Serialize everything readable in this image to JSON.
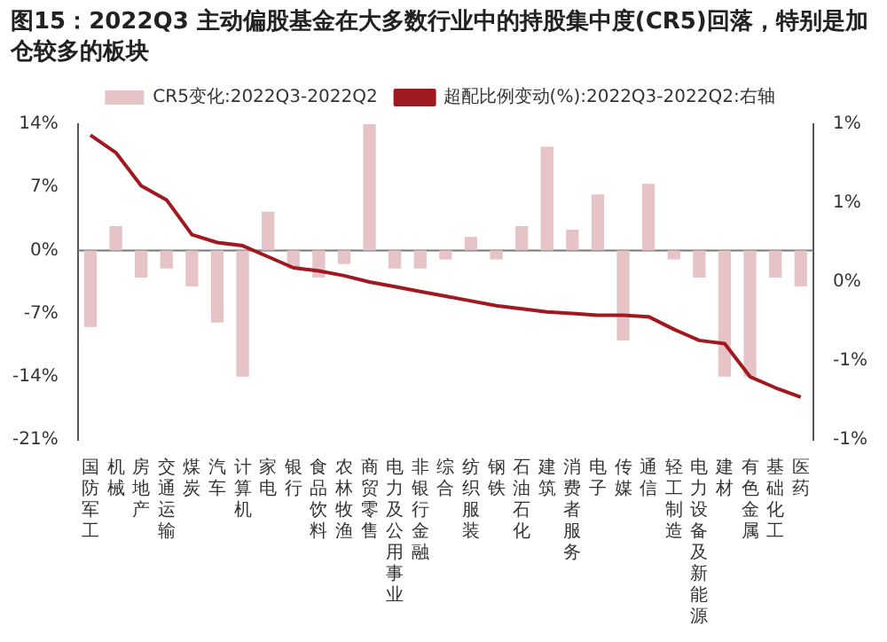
{
  "chart_data": {
    "type": "bar",
    "title": "图15：2022Q3 主动偏股基金在大多数行业中的持股集中度(CR5)回落，特别是加仓较多的板块",
    "categories": [
      "国防军工",
      "机械",
      "房地产",
      "交通运输",
      "煤炭",
      "汽车",
      "计算机",
      "家电",
      "银行",
      "食品饮料",
      "农林牧渔",
      "商贸零售",
      "电力及公用事业",
      "非银行金融",
      "综合",
      "纺织服装",
      "钢铁",
      "石油石化",
      "建筑",
      "消费者服务",
      "电子",
      "传媒",
      "通信",
      "轻工制造",
      "电力设备及新能源",
      "建材",
      "有色金属",
      "基础化工",
      "医药"
    ],
    "series": [
      {
        "name": "CR5变化:2022Q3-2022Q2",
        "color": "#e6c3c6",
        "values": [
          -8.5,
          2.7,
          -3,
          -2,
          -4,
          -8,
          -14,
          4.3,
          -2,
          -3,
          -1.5,
          14,
          -2,
          -2,
          -1,
          1.5,
          -1,
          2.7,
          11.5,
          2.3,
          6.2,
          -10,
          7.4,
          -1,
          -3,
          -14,
          -14,
          -3,
          -4
        ]
      },
      {
        "name": "超配比例变动(%):2022Q3-2022Q2:右轴",
        "type": "line",
        "axis": "y2",
        "color": "#a0191e",
        "values": [
          0.93,
          0.82,
          0.61,
          0.52,
          0.3,
          0.25,
          0.23,
          0.16,
          0.09,
          0.07,
          0.04,
          0.0,
          -0.03,
          -0.06,
          -0.09,
          -0.12,
          -0.15,
          -0.17,
          -0.19,
          -0.2,
          -0.21,
          -0.21,
          -0.22,
          -0.3,
          -0.37,
          -0.39,
          -0.6,
          -0.67,
          -0.73
        ]
      }
    ],
    "ylim": [
      -21,
      14
    ],
    "yticks": [
      {
        "value": -21,
        "label": "-21%"
      },
      {
        "value": -14,
        "label": "-14%"
      },
      {
        "value": -7,
        "label": "-7%"
      },
      {
        "value": 0,
        "label": "0%"
      },
      {
        "value": 7,
        "label": "7%"
      },
      {
        "value": 14,
        "label": "14%"
      }
    ],
    "y2lim": [
      -1,
      1
    ],
    "y2ticks": [
      {
        "value": -1,
        "label": "-1%"
      },
      {
        "value": -0.5,
        "label": "-1%"
      },
      {
        "value": 0,
        "label": "0%"
      },
      {
        "value": 0.5,
        "label": "1%"
      },
      {
        "value": 1,
        "label": "1%"
      }
    ],
    "ref_lines": [
      {
        "axis": "y",
        "value": 0,
        "color": "#777777"
      }
    ],
    "legend": "top",
    "grid": false,
    "marker": "none",
    "line_style": "solid"
  }
}
